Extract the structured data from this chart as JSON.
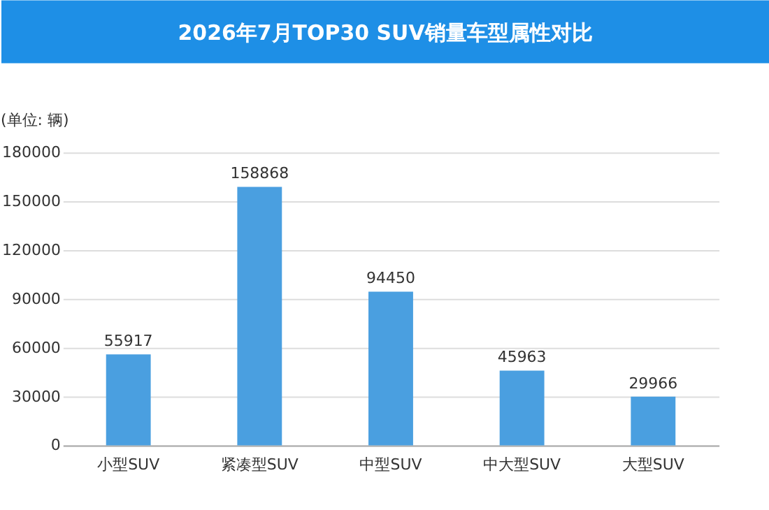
{
  "chart_data": {
    "type": "bar",
    "title": "2026年7月TOP30 SUV销量车型属性对比",
    "ylabel": "(单位: 辆)",
    "categories": [
      "小型SUV",
      "紧凑型SUV",
      "中型SUV",
      "中大型SUV",
      "大型SUV"
    ],
    "values": [
      55917,
      158868,
      94450,
      45963,
      29966
    ],
    "color": "#4a9fe0",
    "ylim": [
      0,
      180000
    ],
    "yticks": [
      0,
      30000,
      60000,
      90000,
      120000,
      150000,
      180000
    ],
    "grid": "y",
    "data_labels": true
  }
}
